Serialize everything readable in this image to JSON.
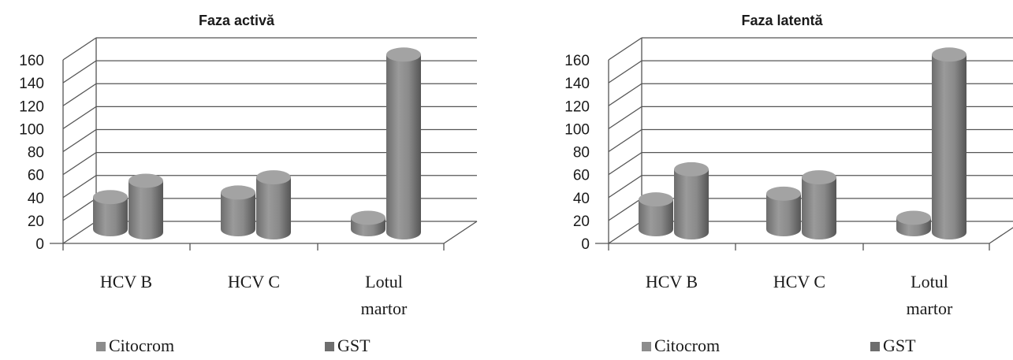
{
  "chart_data": [
    {
      "type": "bar",
      "title": "Faza activă",
      "categories": [
        [
          "HCV B"
        ],
        [
          "HCV C"
        ],
        [
          "Lotul",
          "martor"
        ]
      ],
      "series": [
        {
          "name": "Citocrom",
          "values": [
            28,
            32,
            10
          ]
        },
        {
          "name": "GST",
          "values": [
            45,
            48,
            155
          ]
        }
      ],
      "yticks": [
        0,
        20,
        40,
        60,
        80,
        100,
        120,
        140,
        160
      ],
      "ylim": [
        0,
        160
      ],
      "grid": true,
      "legend": "bottom",
      "colors": [
        "#8c8c8c",
        "#6e6e6e"
      ]
    },
    {
      "type": "bar",
      "title": "Faza latentă",
      "categories": [
        [
          "HCV B"
        ],
        [
          "HCV C"
        ],
        [
          "Lotul",
          "martor"
        ]
      ],
      "series": [
        {
          "name": "Citocrom",
          "values": [
            26,
            31,
            10
          ]
        },
        {
          "name": "GST",
          "values": [
            55,
            48,
            155
          ]
        }
      ],
      "yticks": [
        0,
        20,
        40,
        60,
        80,
        100,
        120,
        140,
        160
      ],
      "ylim": [
        0,
        160
      ],
      "grid": true,
      "legend": "bottom",
      "colors": [
        "#8c8c8c",
        "#6e6e6e"
      ]
    }
  ]
}
